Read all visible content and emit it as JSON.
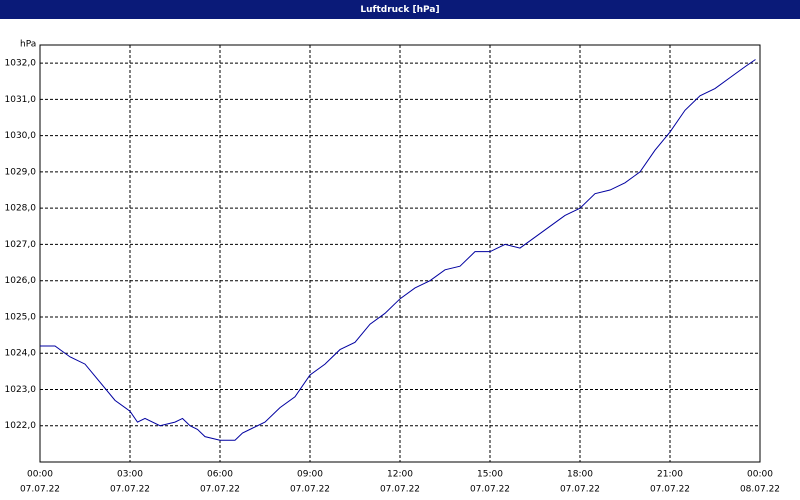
{
  "chart_data": {
    "type": "line",
    "title": "Luftdruck [hPa]",
    "y_label": "hPa",
    "x": [
      0,
      0.5,
      1,
      1.5,
      2,
      2.5,
      3,
      3.25,
      3.5,
      4,
      4.5,
      4.75,
      5,
      5.25,
      5.5,
      6,
      6.5,
      6.75,
      7,
      7.5,
      8,
      8.5,
      9,
      9.5,
      10,
      10.5,
      11,
      11.5,
      12,
      12.5,
      13,
      13.5,
      14,
      14.5,
      15,
      15.5,
      16,
      16.5,
      17,
      17.5,
      18,
      18.5,
      19,
      19.5,
      20,
      20.5,
      21,
      21.5,
      22,
      22.5,
      23,
      23.5,
      23.85
    ],
    "series": [
      {
        "name": "Luftdruck",
        "color": "#0000a0",
        "values": [
          1024.2,
          1024.2,
          1023.9,
          1023.7,
          1023.2,
          1022.7,
          1022.4,
          1022.1,
          1022.2,
          1022.0,
          1022.1,
          1022.2,
          1022.0,
          1021.9,
          1021.7,
          1021.6,
          1021.6,
          1021.8,
          1021.9,
          1022.1,
          1022.5,
          1022.8,
          1023.4,
          1023.7,
          1024.1,
          1024.3,
          1024.8,
          1025.1,
          1025.5,
          1025.8,
          1026.0,
          1026.3,
          1026.4,
          1026.8,
          1026.8,
          1027.0,
          1026.9,
          1027.2,
          1027.5,
          1027.8,
          1028.0,
          1028.4,
          1028.5,
          1028.7,
          1029.0,
          1029.6,
          1030.1,
          1030.7,
          1031.1,
          1031.3,
          1031.6,
          1031.9,
          1032.1
        ]
      }
    ],
    "xlim": [
      0,
      24
    ],
    "xticks": [
      {
        "value": 0,
        "label": "00:00"
      },
      {
        "value": 3,
        "label": "03:00"
      },
      {
        "value": 6,
        "label": "06:00"
      },
      {
        "value": 9,
        "label": "09:00"
      },
      {
        "value": 12,
        "label": "12:00"
      },
      {
        "value": 15,
        "label": "15:00"
      },
      {
        "value": 18,
        "label": "18:00"
      },
      {
        "value": 21,
        "label": "21:00"
      },
      {
        "value": 24,
        "label": "00:00"
      }
    ],
    "xtick_dates": [
      "07.07.22",
      "07.07.22",
      "07.07.22",
      "07.07.22",
      "07.07.22",
      "07.07.22",
      "07.07.22",
      "07.07.22",
      "08.07.22"
    ],
    "ylim": [
      1021,
      1032.5
    ],
    "yticks": [
      {
        "value": 1022,
        "label": "1022,0"
      },
      {
        "value": 1023,
        "label": "1023,0"
      },
      {
        "value": 1024,
        "label": "1024,0"
      },
      {
        "value": 1025,
        "label": "1025,0"
      },
      {
        "value": 1026,
        "label": "1026,0"
      },
      {
        "value": 1027,
        "label": "1027,0"
      },
      {
        "value": 1028,
        "label": "1028,0"
      },
      {
        "value": 1029,
        "label": "1029,0"
      },
      {
        "value": 1030,
        "label": "1030,0"
      },
      {
        "value": 1031,
        "label": "1031,0"
      },
      {
        "value": 1032,
        "label": "1032,0"
      }
    ],
    "grid": true
  }
}
